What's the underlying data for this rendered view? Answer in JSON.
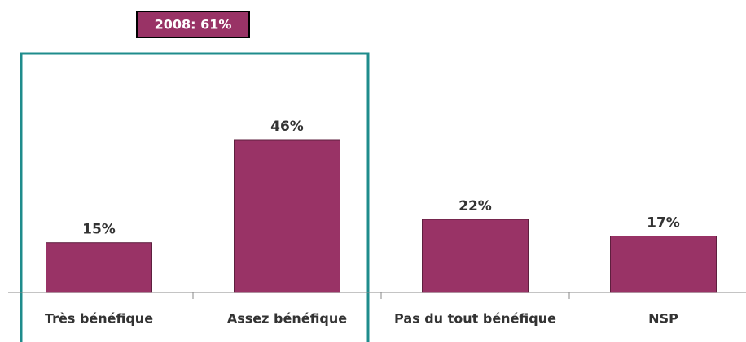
{
  "chart_data": {
    "type": "bar",
    "categories": [
      "Très bénéfique",
      "Assez bénéfique",
      "Pas du tout bénéfique",
      "NSP"
    ],
    "values": [
      15,
      46,
      22,
      17
    ],
    "value_labels": [
      "15%",
      "46%",
      "22%",
      "17%"
    ],
    "color": "#993366",
    "annotation": "2008: 61%"
  }
}
